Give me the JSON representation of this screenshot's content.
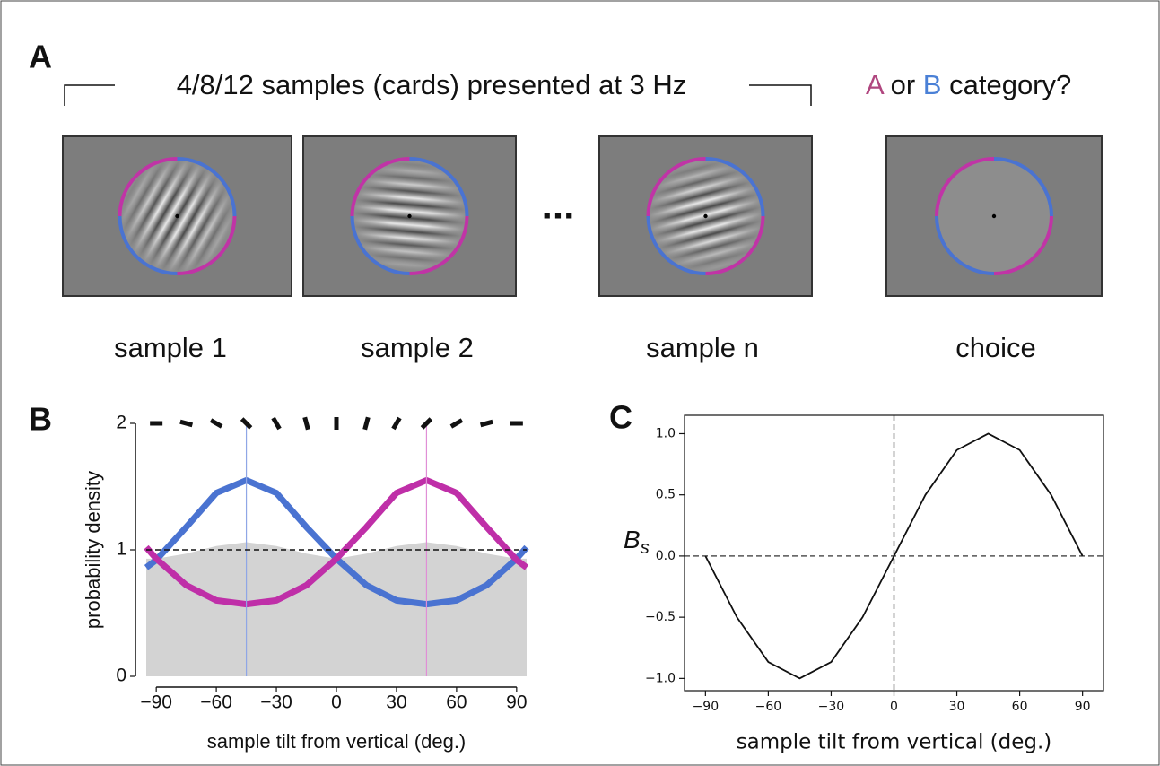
{
  "panel_a": {
    "label": "A",
    "caption": "4/8/12 samples (cards) presented at 3 Hz",
    "question_a": "A",
    "question_or": "or",
    "question_b": "B",
    "question_rest": "category?",
    "ellipsis": "...",
    "samples": [
      "sample 1",
      "sample 2",
      "sample n",
      "choice"
    ]
  },
  "chart_data": [
    {
      "type": "line",
      "panel": "B",
      "ylabel": "probability density",
      "xlabel": "sample tilt from vertical (deg.)",
      "x": [
        -95,
        -90,
        -75,
        -60,
        -45,
        -30,
        -15,
        0,
        15,
        30,
        45,
        60,
        75,
        90,
        95
      ],
      "series": [
        {
          "color": "#d3d3d3",
          "style": "area",
          "values": [
            0.93,
            0.93,
            0.97,
            1.03,
            1.06,
            1.03,
            0.97,
            0.93,
            0.97,
            1.03,
            1.06,
            1.03,
            0.97,
            0.93,
            0.93
          ]
        },
        {
          "color": "#4a73d1",
          "style": "line",
          "values": [
            0.86,
            0.92,
            1.18,
            1.45,
            1.55,
            1.45,
            1.18,
            0.93,
            0.72,
            0.6,
            0.57,
            0.6,
            0.72,
            0.93,
            1.02
          ]
        },
        {
          "color": "#bf2fa8",
          "style": "line",
          "values": [
            1.02,
            0.93,
            0.72,
            0.6,
            0.57,
            0.6,
            0.72,
            0.93,
            1.18,
            1.45,
            1.55,
            1.45,
            1.18,
            0.92,
            0.86
          ]
        }
      ],
      "hlines": [
        1
      ],
      "vlines": [
        {
          "x": -45,
          "color": "#8fa6e6"
        },
        {
          "x": 45,
          "color": "#e08fd6"
        }
      ],
      "xlim": [
        -95,
        95
      ],
      "ylim": [
        0,
        2
      ],
      "xticks": [
        {
          "value": -90,
          "label": "−90"
        },
        {
          "value": -60,
          "label": "−60"
        },
        {
          "value": -30,
          "label": "−30"
        },
        0,
        30,
        60,
        90
      ],
      "yticks": [
        0,
        1,
        2
      ]
    },
    {
      "type": "line",
      "panel": "C",
      "ylabel": "B",
      "ylabel_subscript": "s",
      "xlabel": "sample tilt from vertical (deg.)",
      "x": [
        -90,
        -75,
        -60,
        -45,
        -30,
        -15,
        0,
        15,
        30,
        45,
        60,
        75,
        90
      ],
      "series": [
        {
          "color": "#111111",
          "style": "line",
          "values": [
            0,
            -0.5,
            -0.866,
            -1,
            -0.866,
            -0.5,
            0,
            0.5,
            0.866,
            1,
            0.866,
            0.5,
            0
          ]
        }
      ],
      "hlines": [
        0
      ],
      "vlines": [
        {
          "x": 0,
          "color": "#555555"
        }
      ],
      "xlim": [
        -100,
        100
      ],
      "ylim": [
        -1.1,
        1.15
      ],
      "xticks": [
        {
          "value": -90,
          "label": "−90"
        },
        {
          "value": -60,
          "label": "−60"
        },
        {
          "value": -30,
          "label": "−30"
        },
        0,
        30,
        60,
        90
      ],
      "yticks": [
        {
          "value": -1,
          "label": "−1.0"
        },
        {
          "value": -0.5,
          "label": "−0.5"
        },
        {
          "value": 0,
          "label": "0.0"
        },
        {
          "value": 0.5,
          "label": "0.5"
        },
        {
          "value": 1,
          "label": "1.0"
        }
      ]
    }
  ]
}
